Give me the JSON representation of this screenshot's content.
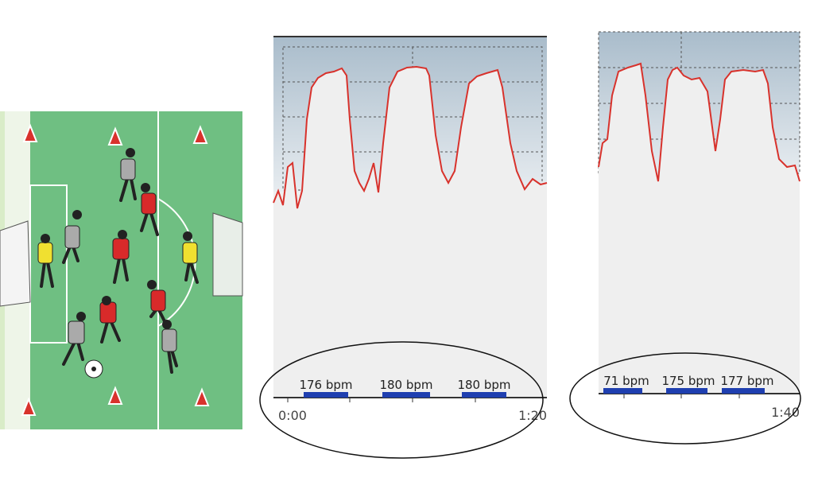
{
  "panels": [
    {
      "markers": [
        "176 bpm",
        "180 bpm",
        "180 bpm"
      ],
      "time_labels": [
        "0:00",
        "1:20"
      ]
    },
    {
      "markers": [
        "71 bpm",
        "175 bpm",
        "177 bpm"
      ],
      "time_labels": [
        "1:40"
      ]
    }
  ]
}
